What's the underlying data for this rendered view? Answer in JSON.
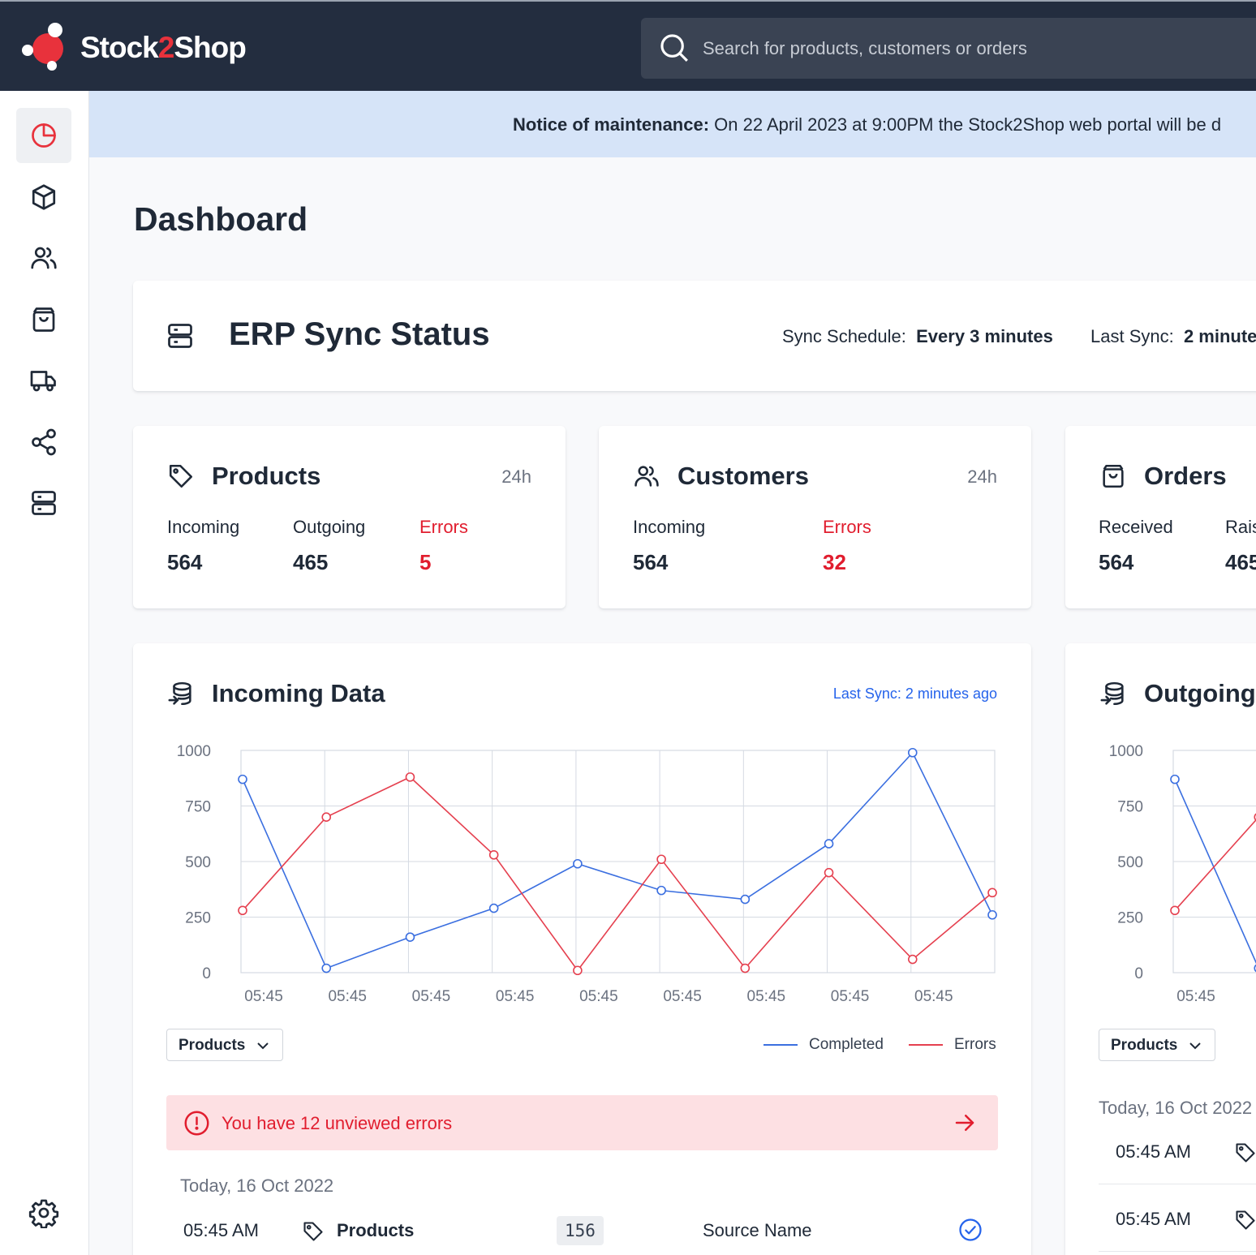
{
  "brand": {
    "part1": "Stock",
    "part2": "2",
    "part3": "Shop"
  },
  "search": {
    "placeholder": "Search for products, customers or orders"
  },
  "sidebar": {
    "items": [
      {
        "icon": "pie-chart-icon",
        "active": true
      },
      {
        "icon": "box-icon"
      },
      {
        "icon": "users-icon"
      },
      {
        "icon": "shopping-bag-icon"
      },
      {
        "icon": "truck-icon"
      },
      {
        "icon": "share-icon"
      },
      {
        "icon": "server-icon"
      }
    ],
    "settings_icon": "gear-icon"
  },
  "notice": {
    "label": "Notice of maintenance:",
    "text": "On 22 April 2023  at 9:00PM the Stock2Shop web portal will be d"
  },
  "page": {
    "title": "Dashboard"
  },
  "erp": {
    "title": "ERP Sync Status",
    "schedule_label": "Sync Schedule:",
    "schedule_value": "Every 3 minutes",
    "last_label": "Last Sync:",
    "last_value": "2 minute"
  },
  "stats": {
    "products": {
      "title": "Products",
      "period": "24h",
      "incoming_label": "Incoming",
      "incoming_value": "564",
      "outgoing_label": "Outgoing",
      "outgoing_value": "465",
      "errors_label": "Errors",
      "errors_value": "5"
    },
    "customers": {
      "title": "Customers",
      "period": "24h",
      "incoming_label": "Incoming",
      "incoming_value": "564",
      "errors_label": "Errors",
      "errors_value": "32"
    },
    "orders": {
      "title": "Orders",
      "received_label": "Received",
      "received_value": "564",
      "raised_label": "Rais",
      "raised_value": "465"
    }
  },
  "incoming": {
    "title": "Incoming Data",
    "last_sync": "Last Sync: 2 minutes ago",
    "dropdown": "Products",
    "legend_completed": "Completed",
    "legend_errors": "Errors",
    "error_alert": "You have 12 unviewed errors",
    "date_group": "Today, 16 Oct 2022",
    "rows": [
      {
        "time": "05:45 AM",
        "type": "Products",
        "count": "156",
        "source": "Source Name"
      }
    ]
  },
  "outgoing": {
    "title": "Outgoing",
    "dropdown": "Products",
    "date_group": "Today, 16 Oct 2022",
    "rows": [
      {
        "time": "05:45 AM"
      },
      {
        "time": "05:45 AM"
      }
    ]
  },
  "colors": {
    "completed": "#3b6fe0",
    "errors": "#e5404f",
    "brand_red": "#e8323c",
    "topbar": "#232d3f"
  },
  "chart_data": [
    {
      "type": "line",
      "title": "Incoming Data",
      "x": [
        "05:45",
        "05:45",
        "05:45",
        "05:45",
        "05:45",
        "05:45",
        "05:45",
        "05:45",
        "05:45",
        "05:45"
      ],
      "x_tick_labels": [
        "05:45",
        "05:45",
        "05:45",
        "05:45",
        "05:45",
        "05:45",
        "05:45",
        "05:45",
        "05:45"
      ],
      "ylim": [
        0,
        1000
      ],
      "yticks": [
        0,
        250,
        500,
        750,
        1000
      ],
      "grid": true,
      "legend": "bottom-right",
      "series": [
        {
          "name": "Completed",
          "values": [
            870,
            20,
            160,
            290,
            490,
            370,
            330,
            580,
            990,
            260
          ]
        },
        {
          "name": "Errors",
          "values": [
            280,
            700,
            880,
            530,
            10,
            510,
            20,
            450,
            60,
            360
          ]
        }
      ]
    },
    {
      "type": "line",
      "title": "Outgoing",
      "x_tick_labels": [
        "05:45"
      ],
      "ylim": [
        0,
        1000
      ],
      "yticks": [
        0,
        250,
        500,
        750,
        1000
      ],
      "grid": true,
      "series": [
        {
          "name": "Completed",
          "values": [
            870,
            20
          ]
        },
        {
          "name": "Errors",
          "values": [
            280,
            700
          ]
        }
      ]
    }
  ]
}
